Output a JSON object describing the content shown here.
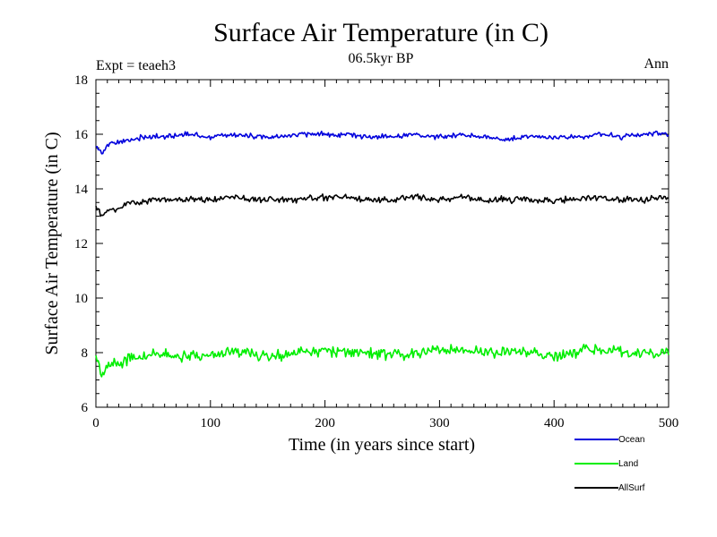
{
  "chart_data": {
    "type": "line",
    "title": "Surface Air Temperature (in C)",
    "subtitle": "06.5kyr BP",
    "experiment_label": "Expt = teaeh3",
    "season_label": "Ann",
    "xlabel": "Time (in years since start)",
    "ylabel": "Surface Air Temperature (in C)",
    "xlim": [
      0,
      500
    ],
    "ylim": [
      6,
      18
    ],
    "x_ticks": [
      0,
      100,
      200,
      300,
      400,
      500
    ],
    "y_ticks": [
      6,
      8,
      10,
      12,
      14,
      16,
      18
    ],
    "legend_position": "below-right",
    "series": [
      {
        "name": "Ocean",
        "color": "#0000dd",
        "x": [
          0,
          5,
          10,
          20,
          30,
          40,
          50,
          60,
          80,
          100,
          120,
          140,
          160,
          180,
          200,
          220,
          240,
          260,
          280,
          300,
          320,
          340,
          360,
          380,
          400,
          420,
          440,
          460,
          480,
          500
        ],
        "values": [
          15.6,
          15.3,
          15.6,
          15.7,
          15.8,
          15.9,
          15.9,
          15.9,
          16.0,
          15.9,
          16.0,
          15.9,
          15.9,
          16.0,
          16.0,
          16.0,
          15.9,
          15.9,
          16.0,
          15.9,
          16.0,
          15.9,
          15.8,
          15.9,
          15.9,
          15.9,
          16.0,
          15.9,
          16.0,
          16.0
        ]
      },
      {
        "name": "Land",
        "color": "#00ee00",
        "x": [
          0,
          5,
          10,
          20,
          30,
          40,
          50,
          60,
          80,
          100,
          120,
          140,
          160,
          180,
          200,
          220,
          240,
          260,
          280,
          300,
          320,
          340,
          360,
          380,
          400,
          420,
          440,
          460,
          480,
          500
        ],
        "values": [
          7.9,
          7.2,
          7.5,
          7.6,
          7.8,
          7.9,
          7.9,
          7.9,
          7.9,
          7.9,
          8.1,
          7.9,
          7.9,
          8.0,
          8.1,
          8.0,
          8.0,
          7.9,
          8.0,
          8.1,
          8.1,
          8.0,
          8.0,
          8.0,
          7.8,
          8.0,
          8.1,
          8.0,
          8.0,
          8.0
        ]
      },
      {
        "name": "AllSurf",
        "color": "#000000",
        "x": [
          0,
          5,
          10,
          20,
          30,
          40,
          50,
          60,
          80,
          100,
          120,
          140,
          160,
          180,
          200,
          220,
          240,
          260,
          280,
          300,
          320,
          340,
          360,
          380,
          400,
          420,
          440,
          460,
          480,
          500
        ],
        "values": [
          13.4,
          13.0,
          13.2,
          13.3,
          13.5,
          13.5,
          13.6,
          13.6,
          13.6,
          13.6,
          13.7,
          13.6,
          13.6,
          13.6,
          13.7,
          13.7,
          13.6,
          13.6,
          13.7,
          13.6,
          13.7,
          13.6,
          13.6,
          13.6,
          13.6,
          13.6,
          13.7,
          13.6,
          13.6,
          13.7
        ]
      }
    ]
  }
}
